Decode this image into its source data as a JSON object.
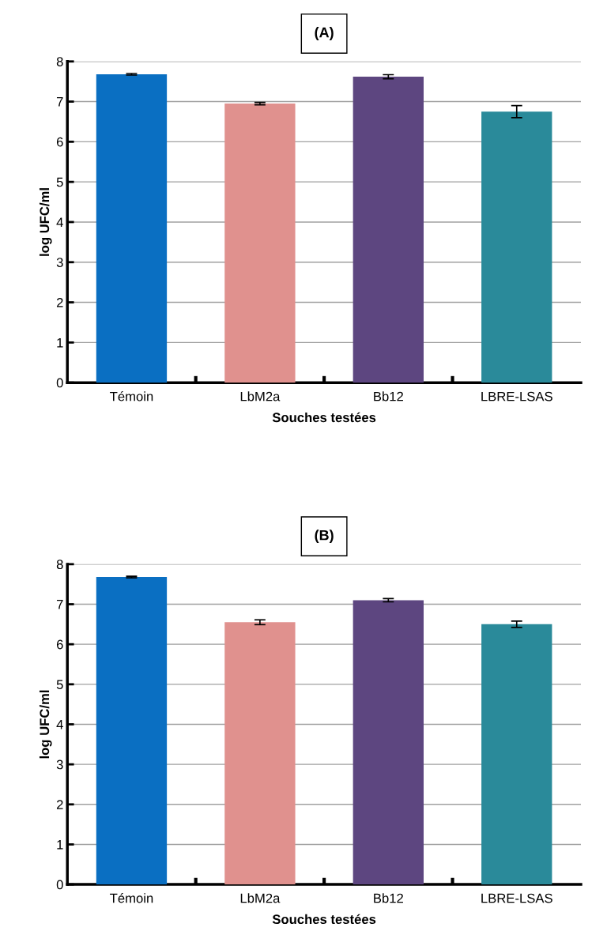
{
  "chart_data": [
    {
      "type": "bar",
      "title": "(A)",
      "xlabel": "Souches testées",
      "ylabel": "log UFC/ml",
      "categories": [
        "Témoin",
        "LbM2a",
        "Bb12",
        "LBRE-LSAS"
      ],
      "values": [
        7.68,
        6.95,
        7.62,
        6.75
      ],
      "errors": [
        0.02,
        0.03,
        0.05,
        0.15
      ],
      "colors": [
        "#0a6fc2",
        "#e0918e",
        "#5d4680",
        "#2a8a9a"
      ],
      "ylim": [
        0,
        8
      ],
      "yticks": [
        0,
        1,
        2,
        3,
        4,
        5,
        6,
        7,
        8
      ],
      "grid": "y",
      "legend": false
    },
    {
      "type": "bar",
      "title": "(B)",
      "xlabel": "Souches testées",
      "ylabel": "log UFC/ml",
      "categories": [
        "Témoin",
        "LbM2a",
        "Bb12",
        "LBRE-LSAS"
      ],
      "values": [
        7.68,
        6.55,
        7.1,
        6.5
      ],
      "errors": [
        0.02,
        0.06,
        0.04,
        0.08
      ],
      "colors": [
        "#0a6fc2",
        "#e0918e",
        "#5d4680",
        "#2a8a9a"
      ],
      "ylim": [
        0,
        8
      ],
      "yticks": [
        0,
        1,
        2,
        3,
        4,
        5,
        6,
        7,
        8
      ],
      "grid": "y",
      "legend": false
    }
  ]
}
